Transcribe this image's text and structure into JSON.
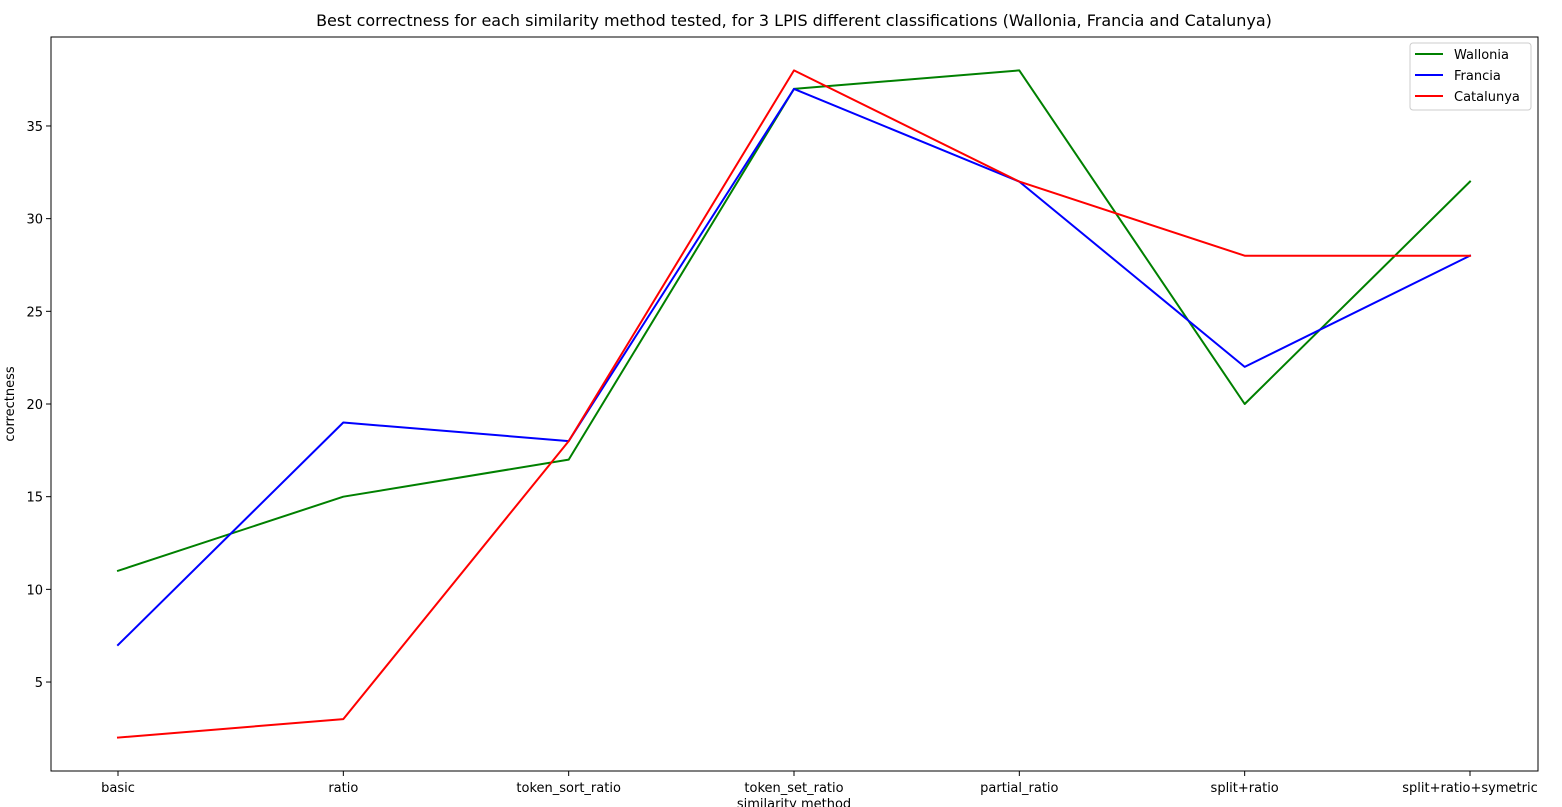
{
  "chart_data": {
    "type": "line",
    "title": "Best correctness for each similarity method tested, for 3 LPIS different classifications (Wallonia, Francia and Catalunya)",
    "xlabel": "similarity method",
    "ylabel": "correctness",
    "categories": [
      "basic",
      "ratio",
      "token_sort_ratio",
      "token_set_ratio",
      "partial_ratio",
      "split+ratio",
      "split+ratio+symetric"
    ],
    "yticks": [
      5,
      10,
      15,
      20,
      25,
      30,
      35
    ],
    "ylim": [
      0.2,
      39.8
    ],
    "grid": false,
    "legend_position": "top-right",
    "series": [
      {
        "name": "Wallonia",
        "color": "#008000",
        "values": [
          11,
          15,
          17,
          37,
          38,
          20,
          32
        ]
      },
      {
        "name": "Francia",
        "color": "#0000ff",
        "values": [
          7,
          19,
          18,
          37,
          32,
          22,
          28
        ]
      },
      {
        "name": "Catalunya",
        "color": "#ff0000",
        "values": [
          2,
          3,
          18,
          38,
          32,
          28,
          28
        ]
      }
    ]
  }
}
